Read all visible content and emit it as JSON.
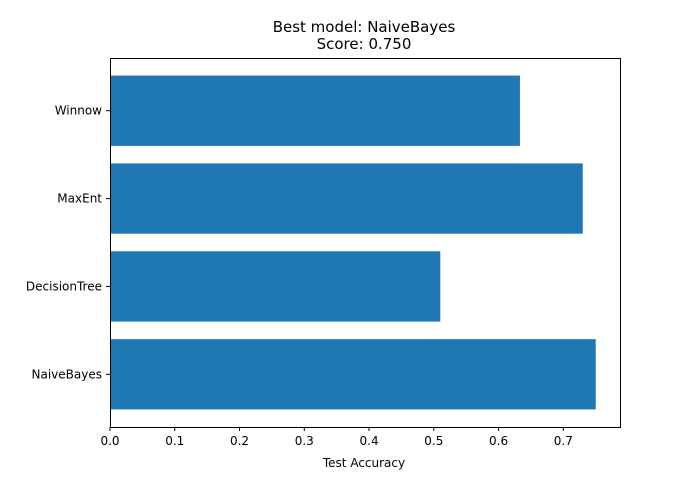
{
  "chart_data": {
    "type": "bar",
    "orientation": "horizontal",
    "title": "Best model: NaiveBayes",
    "subtitle": "Score: 0.750",
    "xlabel": "Test Accuracy",
    "ylabel": "",
    "categories": [
      "NaiveBayes",
      "DecisionTree",
      "MaxEnt",
      "Winnow"
    ],
    "values": [
      0.75,
      0.51,
      0.73,
      0.633
    ],
    "xlim": [
      0,
      0.7875
    ],
    "xticks": [
      "0.0",
      "0.1",
      "0.2",
      "0.3",
      "0.4",
      "0.5",
      "0.6",
      "0.7"
    ],
    "bar_color": "#1f77b4",
    "grid": false,
    "legend": "none"
  }
}
